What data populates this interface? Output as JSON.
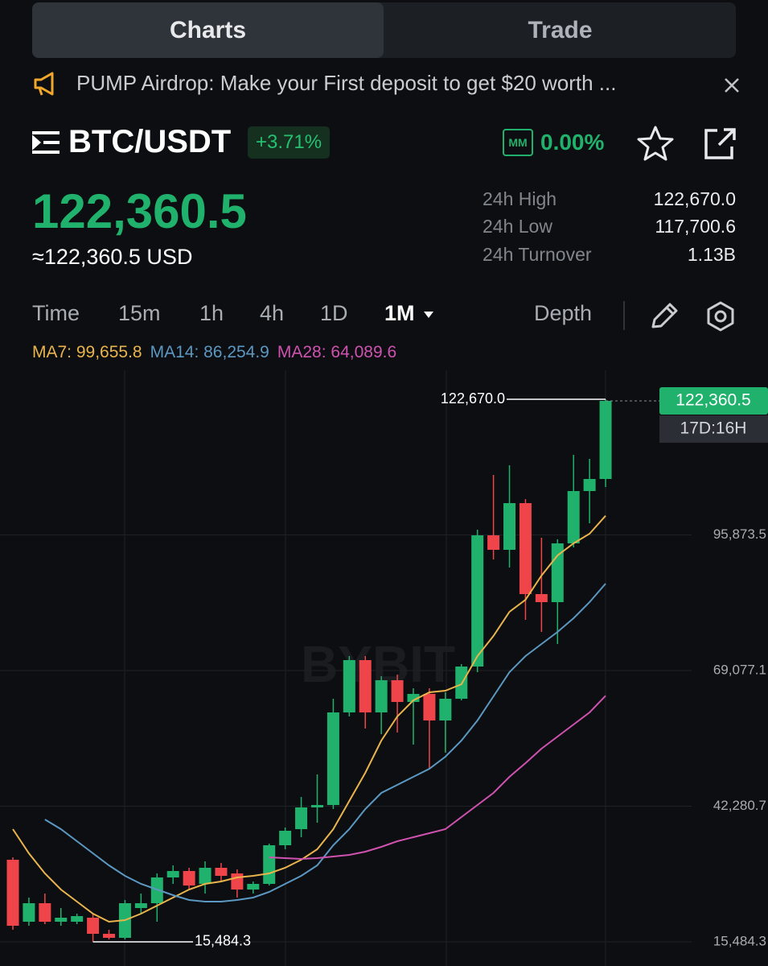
{
  "tabs": [
    "Charts",
    "Trade"
  ],
  "banner": {
    "text": "PUMP Airdrop: Make your First deposit to get $20 worth ..."
  },
  "pair": {
    "symbol": "BTC/USDT",
    "change": "+3.71%",
    "mm_badge": "MM",
    "mm": "0.00%"
  },
  "price": {
    "last": "122,360.5",
    "usd": "≈122,360.5 USD"
  },
  "stats": [
    {
      "label": "24h High",
      "value": "122,670.0"
    },
    {
      "label": "24h Low",
      "value": "117,700.6"
    },
    {
      "label": "24h Turnover",
      "value": "1.13B"
    }
  ],
  "timeframes": [
    "Time",
    "15m",
    "1h",
    "4h",
    "1D",
    "1M"
  ],
  "depth": "Depth",
  "watermark": "BYBIT",
  "chart_data": {
    "type": "candlestick",
    "open": [
      31705,
      19460,
      23118,
      19460,
      19460,
      20255,
      17075,
      16279,
      22163,
      23118,
      28207,
      29479,
      26935,
      30115,
      29002,
      25822,
      26935,
      34568,
      37749,
      42043,
      42520,
      60810,
      71147,
      60810,
      67171,
      62877,
      64467,
      59219,
      63513,
      69875,
      95797,
      92934,
      102159,
      84188,
      82598,
      94206,
      104545,
      106929
    ],
    "high": [
      32182,
      24231,
      25026,
      22163,
      21050,
      21050,
      17870,
      23754,
      25026,
      29002,
      30592,
      30115,
      31387,
      31069,
      29797,
      27412,
      34886,
      38067,
      44109,
      48564,
      63513,
      71942,
      71942,
      67966,
      68284,
      65580,
      65580,
      64785,
      70352,
      96910,
      107725,
      109633,
      102954,
      95320,
      95002,
      111701,
      110906,
      122670
    ],
    "low": [
      17870,
      18665,
      18983,
      18665,
      18983,
      15484.3,
      15961,
      15961,
      21050,
      19460,
      26935,
      25822,
      25026,
      27412,
      24231,
      25026,
      26617,
      33773,
      36159,
      39021,
      41725,
      60015,
      57629,
      56516,
      56834,
      54448,
      49677,
      52857,
      63195,
      68761,
      91026,
      89436,
      79096,
      76714,
      74328,
      93411,
      98182,
      105339
    ],
    "close": [
      18665,
      23118,
      19460,
      20255,
      20573,
      17075,
      16279,
      23118,
      23118,
      28207,
      29479,
      26617,
      30115,
      28525,
      25822,
      26935,
      34568,
      37431,
      42043,
      42520,
      60810,
      71147,
      60810,
      67171,
      62877,
      64467,
      59219,
      63513,
      69875,
      95797,
      92934,
      102159,
      84188,
      82598,
      94206,
      104545,
      106929,
      122360.5
    ],
    "up_color": "#20b26c",
    "down_color": "#ef454a",
    "series": [
      {
        "name": "MA7: 99,655.8",
        "color": "#e9b44c",
        "values": [
          37748,
          32977,
          29002,
          25821,
          23436,
          21050,
          19460,
          19778,
          21050,
          22640,
          24231,
          25821,
          26934,
          27411,
          28206,
          28524,
          29002,
          30115,
          31705,
          33772,
          37748,
          43314,
          48880,
          55242,
          60012,
          63193,
          64783,
          65101,
          66374,
          71940,
          75915,
          80686,
          83072,
          87843,
          91818,
          94204,
          96112,
          99655.8
        ]
      },
      {
        "name": "MA14: 86,254.9",
        "color": "#5b98c2",
        "values": [
          null,
          null,
          39657,
          37748,
          35363,
          32977,
          30592,
          28524,
          26934,
          25821,
          24708,
          23754,
          23436,
          23436,
          23754,
          24231,
          25344,
          26934,
          28524,
          30592,
          34568,
          37748,
          41724,
          44905,
          46495,
          48085,
          49675,
          52061,
          55242,
          59217,
          63988,
          68759,
          71940,
          74325,
          76711,
          79414,
          82595,
          86254.9
        ]
      },
      {
        "name": "MA28: 64,089.6",
        "color": "#cf52b0",
        "values": [
          null,
          null,
          null,
          null,
          null,
          null,
          null,
          null,
          null,
          null,
          null,
          null,
          null,
          null,
          null,
          null,
          32182,
          32023,
          31864,
          32023,
          32341,
          32659,
          33295,
          34250,
          35363,
          36158,
          36953,
          37748,
          40134,
          42519,
          44905,
          48085,
          50789,
          53651,
          56037,
          58422,
          60808,
          64089.6
        ]
      }
    ],
    "ylim": [
      11508,
      126807
    ],
    "yticks": [
      {
        "value": 15484.3,
        "label": "15,484.3"
      },
      {
        "value": 42280.7,
        "label": "42,280.7"
      },
      {
        "value": 69077.1,
        "label": "69,077.1"
      },
      {
        "value": 95873.5,
        "label": "95,873.5"
      }
    ],
    "grid": true,
    "high_label": "122,670.0",
    "low_label": "15,484.3",
    "last_price": {
      "value": 122360.5,
      "label": "122,360.5"
    },
    "countdown": "17D:16H"
  }
}
